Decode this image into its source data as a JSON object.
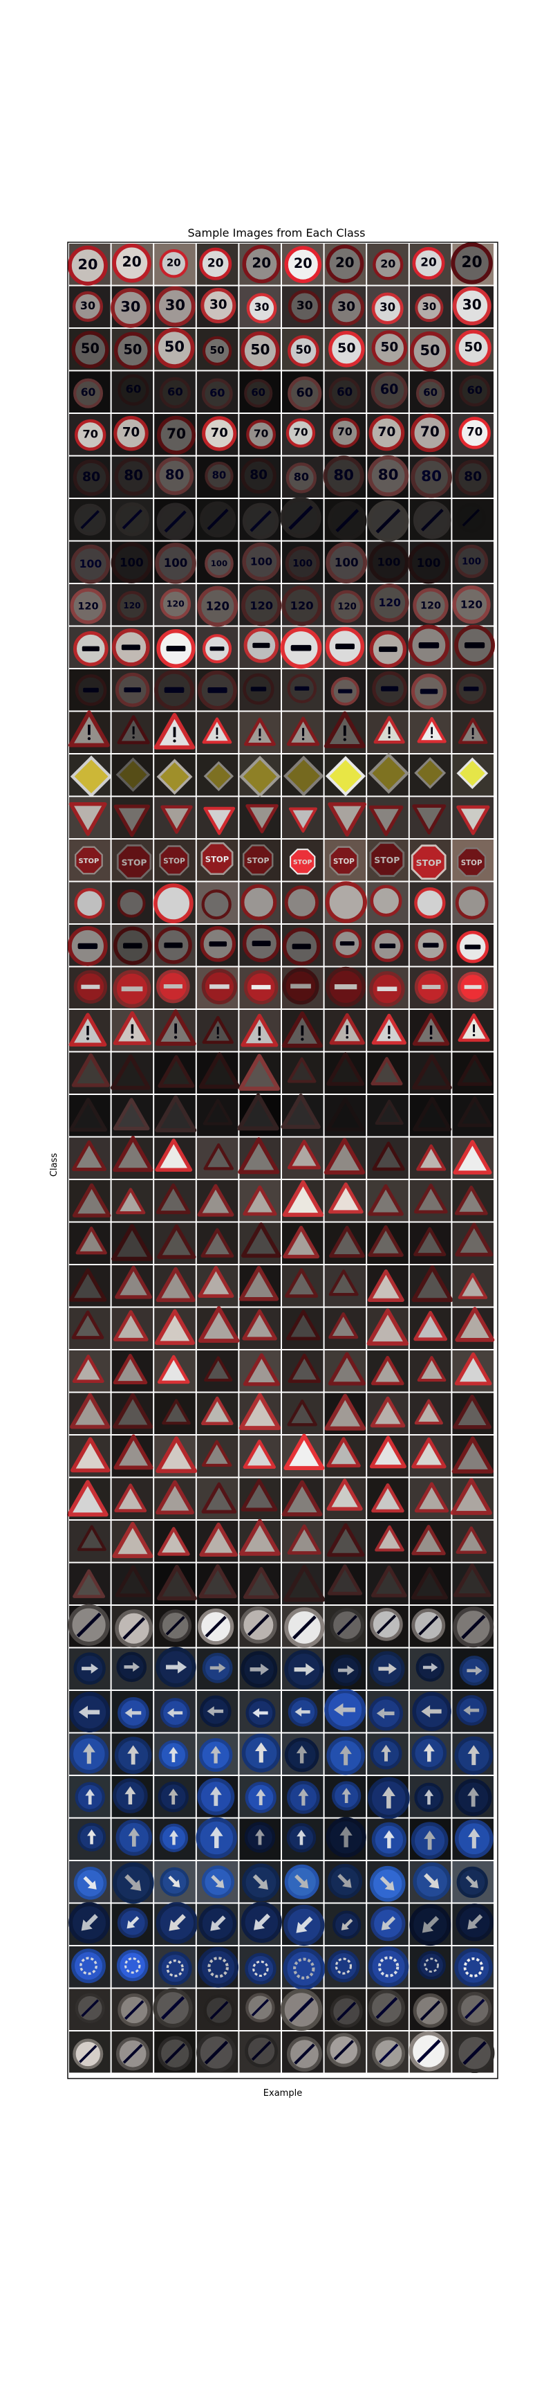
{
  "chart_data": {
    "type": "image_grid",
    "title": "Sample Images from Each Class",
    "xlabel": "Example",
    "ylabel": "Class",
    "rows": 43,
    "columns": 10,
    "images_per_class": 10,
    "grid": false,
    "row_styles": [
      {
        "shape": "circle",
        "face": "#e9e2dd",
        "border": "#c8202a",
        "glyph": "20",
        "glyph_color": "#111",
        "bg": "#6b5f58"
      },
      {
        "shape": "circle",
        "face": "#cfc6c2",
        "border": "#b52a2f",
        "glyph": "30",
        "glyph_color": "#111",
        "bg": "#3c3535"
      },
      {
        "shape": "circle",
        "face": "#efe9e2",
        "border": "#c9262c",
        "glyph": "50",
        "glyph_color": "#111",
        "bg": "#4a433d"
      },
      {
        "shape": "circle",
        "face": "#4a4541",
        "border": "#5a3030",
        "glyph": "60",
        "glyph_color": "#222",
        "bg": "#1d1b1b"
      },
      {
        "shape": "circle",
        "face": "#e5ddd6",
        "border": "#c8242a",
        "glyph": "70",
        "glyph_color": "#111",
        "bg": "#2a2626"
      },
      {
        "shape": "circle",
        "face": "#57524f",
        "border": "#5b3131",
        "glyph": "80",
        "glyph_color": "#222",
        "bg": "#1e1c1c"
      },
      {
        "shape": "circle",
        "face": "#3a3836",
        "border": "#3b3735",
        "glyph": "/",
        "glyph_color": "#222",
        "bg": "#1a1918"
      },
      {
        "shape": "circle",
        "face": "#4b4646",
        "border": "#5a3030",
        "glyph": "100",
        "glyph_color": "#222",
        "bg": "#1f1d1d"
      },
      {
        "shape": "circle",
        "face": "#5a5450",
        "border": "#6a3232",
        "glyph": "120",
        "glyph_color": "#222",
        "bg": "#2c2828"
      },
      {
        "shape": "circle",
        "face": "#e7dfd8",
        "border": "#c92b2f",
        "glyph": "car",
        "glyph_color": "#111",
        "bg": "#3f3836"
      },
      {
        "shape": "circle",
        "face": "#5a534f",
        "border": "#6e3232",
        "glyph": "car",
        "glyph_color": "#222",
        "bg": "#2a2523"
      },
      {
        "shape": "triangle",
        "face": "#d9d2cb",
        "border": "#b8262b",
        "glyph": "!",
        "glyph_color": "#111",
        "bg": "#3b3430"
      },
      {
        "shape": "diamond",
        "face": "#d8c23a",
        "border": "#efe9e0",
        "glyph": "",
        "glyph_color": "#111",
        "bg": "#2e2b26"
      },
      {
        "shape": "inv_triangle",
        "face": "#e6dfd7",
        "border": "#c3282d",
        "glyph": "",
        "glyph_color": "#111",
        "bg": "#3a3431"
      },
      {
        "shape": "octagon",
        "face": "#c8262c",
        "border": "#e3d5cf",
        "glyph": "STOP",
        "glyph_color": "#f3eeea",
        "bg": "#5c4d45"
      },
      {
        "shape": "circle",
        "face": "#ece6e1",
        "border": "#c72a2e",
        "glyph": "",
        "glyph_color": "#111",
        "bg": "#4d4542"
      },
      {
        "shape": "circle",
        "face": "#ded7d2",
        "border": "#c5272c",
        "glyph": "car",
        "glyph_color": "#111",
        "bg": "#3e3735"
      },
      {
        "shape": "circle",
        "face": "#c5262b",
        "border": "#8e2d2e",
        "glyph": "bar",
        "glyph_color": "#f3efeb",
        "bg": "#4a3f3b"
      },
      {
        "shape": "triangle",
        "face": "#dcd5cf",
        "border": "#c0282c",
        "glyph": "!",
        "glyph_color": "#111",
        "bg": "#3b3431"
      },
      {
        "shape": "triangle",
        "face": "#4a4440",
        "border": "#6a2e2e",
        "glyph": "",
        "glyph_color": "#222",
        "bg": "#1f1c1b"
      },
      {
        "shape": "triangle",
        "face": "#2c2a2a",
        "border": "#3b2727",
        "glyph": "",
        "glyph_color": "#222",
        "bg": "#151414"
      },
      {
        "shape": "triangle",
        "face": "#d3ccc6",
        "border": "#b5282c",
        "glyph": "",
        "glyph_color": "#111",
        "bg": "#3a3331"
      },
      {
        "shape": "triangle",
        "face": "#c8c1bb",
        "border": "#a82b2e",
        "glyph": "",
        "glyph_color": "#111",
        "bg": "#38322f"
      },
      {
        "shape": "triangle",
        "face": "#b9b2ac",
        "border": "#a12b2e",
        "glyph": "",
        "glyph_color": "#111",
        "bg": "#2f2a28"
      },
      {
        "shape": "triangle",
        "face": "#bdb6b0",
        "border": "#a52b2e",
        "glyph": "",
        "glyph_color": "#111",
        "bg": "#312c2a"
      },
      {
        "shape": "triangle",
        "face": "#c6bfb9",
        "border": "#ad2a2e",
        "glyph": "",
        "glyph_color": "#111",
        "bg": "#36302d"
      },
      {
        "shape": "triangle",
        "face": "#cfc8c2",
        "border": "#b3292d",
        "glyph": "",
        "glyph_color": "#111",
        "bg": "#3a3431"
      },
      {
        "shape": "triangle",
        "face": "#b7b0aa",
        "border": "#9d2b2e",
        "glyph": "",
        "glyph_color": "#111",
        "bg": "#2d2826"
      },
      {
        "shape": "triangle",
        "face": "#d6cfc9",
        "border": "#b8292d",
        "glyph": "",
        "glyph_color": "#111",
        "bg": "#3b3532"
      },
      {
        "shape": "triangle",
        "face": "#c2bbb5",
        "border": "#a82a2e",
        "glyph": "",
        "glyph_color": "#111",
        "bg": "#332e2b"
      },
      {
        "shape": "triangle",
        "face": "#bcb5af",
        "border": "#9f2b2e",
        "glyph": "",
        "glyph_color": "#111",
        "bg": "#302b29"
      },
      {
        "shape": "triangle",
        "face": "#4c4744",
        "border": "#5a2f2f",
        "glyph": "",
        "glyph_color": "#222",
        "bg": "#1c1a1a"
      },
      {
        "shape": "circle",
        "face": "#d2ccc7",
        "border": "#6d6764",
        "glyph": "diag",
        "glyph_color": "#222",
        "bg": "#2b2826"
      },
      {
        "shape": "circle",
        "face": "#1f3f86",
        "border": "#173269",
        "glyph": "arrow-right",
        "glyph_color": "#e9eef6",
        "bg": "#232629"
      },
      {
        "shape": "circle",
        "face": "#2147a0",
        "border": "#18357a",
        "glyph": "arrow-left",
        "glyph_color": "#e9eef6",
        "bg": "#2a2e33"
      },
      {
        "shape": "circle",
        "face": "#2451b0",
        "border": "#1a3c86",
        "glyph": "arrow-up",
        "glyph_color": "#eef2f8",
        "bg": "#34393f"
      },
      {
        "shape": "circle",
        "face": "#1e4296",
        "border": "#163272",
        "glyph": "arrow-up",
        "glyph_color": "#e9eef6",
        "bg": "#252a2f"
      },
      {
        "shape": "circle",
        "face": "#1f4599",
        "border": "#173474",
        "glyph": "arrow-up",
        "glyph_color": "#e9eef6",
        "bg": "#262a2e"
      },
      {
        "shape": "circle",
        "face": "#2f63c8",
        "border": "#234fa3",
        "glyph": "arrow-dr",
        "glyph_color": "#f1f4f9",
        "bg": "#3c4148"
      },
      {
        "shape": "circle",
        "face": "#1e3e8c",
        "border": "#172f69",
        "glyph": "arrow-dl",
        "glyph_color": "#e9eef6",
        "bg": "#22262a"
      },
      {
        "shape": "circle",
        "face": "#2348a4",
        "border": "#19377d",
        "glyph": "round",
        "glyph_color": "#e9eef6",
        "bg": "#2c3035"
      },
      {
        "shape": "circle",
        "face": "#8b8682",
        "border": "#55504c",
        "glyph": "diag",
        "glyph_color": "#333",
        "bg": "#2a2725"
      },
      {
        "shape": "circle",
        "face": "#c0bab6",
        "border": "#6a6561",
        "glyph": "diag",
        "glyph_color": "#333",
        "bg": "#2f2c2a"
      }
    ]
  }
}
